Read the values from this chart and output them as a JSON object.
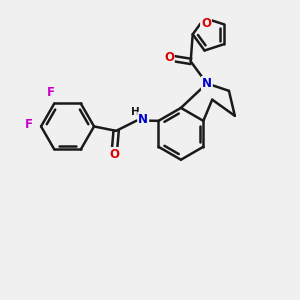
{
  "background_color": "#f0f0f0",
  "bond_color": "#1a1a1a",
  "bond_width": 1.8,
  "atom_colors": {
    "F": "#cc00cc",
    "O": "#dd0000",
    "N": "#0000cc",
    "C": "#1a1a1a"
  },
  "font_size": 8.5,
  "figsize": [
    3.0,
    3.0
  ],
  "dpi": 100,
  "xlim": [
    0,
    10
  ],
  "ylim": [
    0,
    10
  ]
}
